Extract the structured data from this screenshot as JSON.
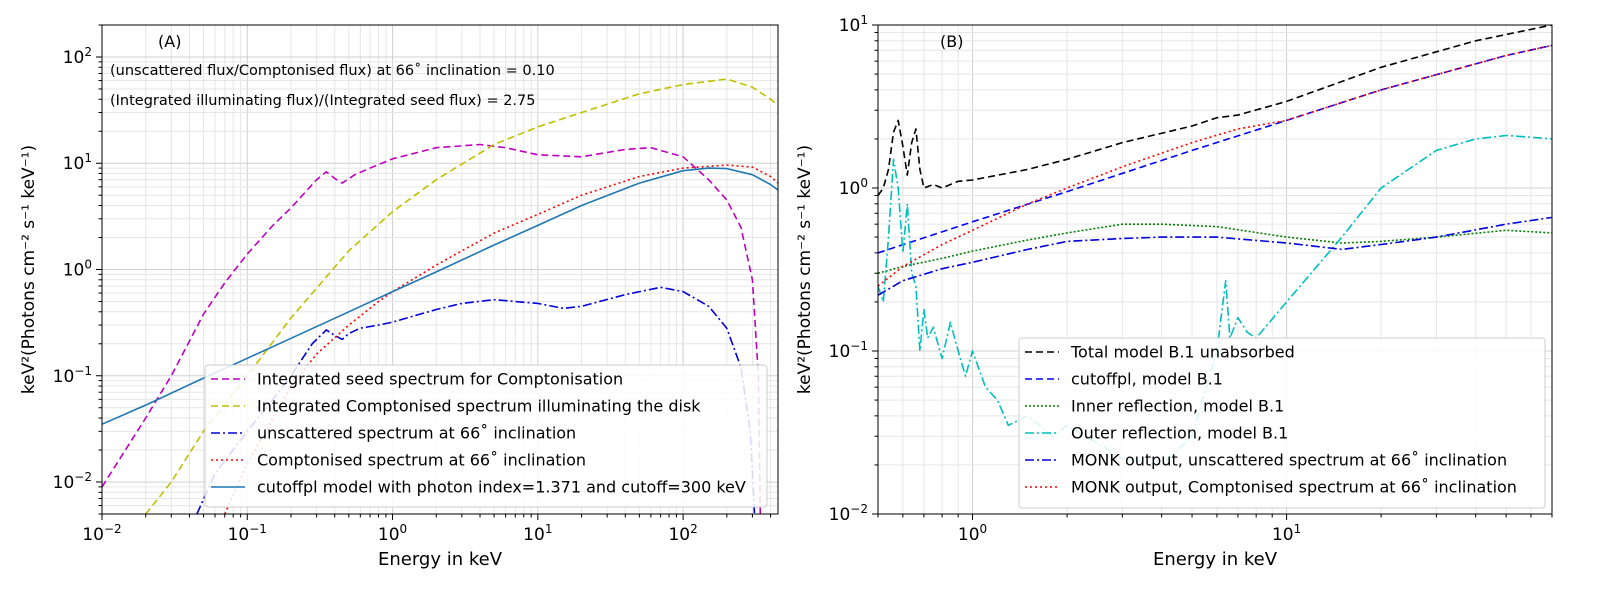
{
  "chart_data": [
    {
      "type": "line",
      "panel_label": "(A)",
      "xlabel": "Energy in keV",
      "ylabel": "keV²(Photons cm⁻² s⁻¹ keV⁻¹)",
      "xscale": "log",
      "yscale": "log",
      "xlim": [
        0.01,
        450
      ],
      "ylim": [
        0.005,
        200
      ],
      "x_ticks": [
        {
          "v": 0.01,
          "b": "10",
          "e": "−2"
        },
        {
          "v": 0.1,
          "b": "10",
          "e": "−1"
        },
        {
          "v": 1,
          "b": "10",
          "e": "0"
        },
        {
          "v": 10,
          "b": "10",
          "e": "1"
        },
        {
          "v": 100,
          "b": "10",
          "e": "2"
        }
      ],
      "y_ticks": [
        {
          "v": 0.01,
          "b": "10",
          "e": "−2"
        },
        {
          "v": 0.1,
          "b": "10",
          "e": "−1"
        },
        {
          "v": 1,
          "b": "10",
          "e": "0"
        },
        {
          "v": 10,
          "b": "10",
          "e": "1"
        },
        {
          "v": 100,
          "b": "10",
          "e": "2"
        }
      ],
      "annotations": [
        "(unscattered flux/Comptonised flux) at 66˚ inclination = 0.10",
        "(Integrated illuminating flux)/(Integrated seed flux) = 2.75"
      ],
      "legend_position": "lower-right",
      "series": [
        {
          "name": "Integrated seed spectrum for Comptonisation",
          "color": "#c000c0",
          "dash": "7,4",
          "points": [
            [
              0.01,
              0.009
            ],
            [
              0.02,
              0.04
            ],
            [
              0.03,
              0.1
            ],
            [
              0.05,
              0.38
            ],
            [
              0.07,
              0.75
            ],
            [
              0.1,
              1.4
            ],
            [
              0.15,
              2.6
            ],
            [
              0.2,
              3.8
            ],
            [
              0.3,
              7
            ],
            [
              0.35,
              8.3
            ],
            [
              0.4,
              7.2
            ],
            [
              0.45,
              6.5
            ],
            [
              0.55,
              7.8
            ],
            [
              0.7,
              9
            ],
            [
              1,
              11
            ],
            [
              2,
              14
            ],
            [
              4,
              15
            ],
            [
              6,
              14
            ],
            [
              10,
              12
            ],
            [
              20,
              11.5
            ],
            [
              40,
              13.5
            ],
            [
              60,
              14
            ],
            [
              100,
              11.5
            ],
            [
              150,
              7
            ],
            [
              200,
              4.5
            ],
            [
              250,
              2.5
            ],
            [
              300,
              0.8
            ],
            [
              330,
              0.1
            ],
            [
              340,
              0.005
            ]
          ]
        },
        {
          "name": "Integrated Comptonised spectrum illuminating the disk",
          "color": "#c0c000",
          "dash": "7,4",
          "points": [
            [
              0.02,
              0.005
            ],
            [
              0.03,
              0.01
            ],
            [
              0.05,
              0.03
            ],
            [
              0.1,
              0.1
            ],
            [
              0.2,
              0.35
            ],
            [
              0.5,
              1.5
            ],
            [
              1,
              3.5
            ],
            [
              2,
              7
            ],
            [
              5,
              15
            ],
            [
              10,
              22
            ],
            [
              20,
              30
            ],
            [
              50,
              45
            ],
            [
              100,
              55
            ],
            [
              200,
              62
            ],
            [
              300,
              52
            ],
            [
              400,
              40
            ],
            [
              450,
              35
            ]
          ]
        },
        {
          "name": "unscattered spectrum at 66˚ inclination",
          "color": "#0000dd",
          "dash": "9,3,2,3",
          "points": [
            [
              0.045,
              0.005
            ],
            [
              0.06,
              0.012
            ],
            [
              0.1,
              0.03
            ],
            [
              0.15,
              0.06
            ],
            [
              0.2,
              0.1
            ],
            [
              0.28,
              0.2
            ],
            [
              0.35,
              0.27
            ],
            [
              0.4,
              0.24
            ],
            [
              0.45,
              0.22
            ],
            [
              0.5,
              0.25
            ],
            [
              0.6,
              0.28
            ],
            [
              0.8,
              0.3
            ],
            [
              1,
              0.32
            ],
            [
              2,
              0.42
            ],
            [
              3,
              0.48
            ],
            [
              5,
              0.52
            ],
            [
              10,
              0.48
            ],
            [
              15,
              0.43
            ],
            [
              20,
              0.45
            ],
            [
              40,
              0.58
            ],
            [
              70,
              0.68
            ],
            [
              100,
              0.62
            ],
            [
              150,
              0.45
            ],
            [
              200,
              0.28
            ],
            [
              250,
              0.12
            ],
            [
              290,
              0.03
            ],
            [
              310,
              0.005
            ]
          ]
        },
        {
          "name": "Comptonised spectrum at 66˚ inclination",
          "color": "#ff0000",
          "dash": "2,3",
          "points": [
            [
              0.07,
              0.005
            ],
            [
              0.1,
              0.015
            ],
            [
              0.15,
              0.04
            ],
            [
              0.2,
              0.08
            ],
            [
              0.3,
              0.16
            ],
            [
              0.5,
              0.3
            ],
            [
              0.8,
              0.5
            ],
            [
              1,
              0.62
            ],
            [
              2,
              1.1
            ],
            [
              3,
              1.5
            ],
            [
              5,
              2.2
            ],
            [
              10,
              3.3
            ],
            [
              20,
              5
            ],
            [
              50,
              7.5
            ],
            [
              100,
              9
            ],
            [
              200,
              9.6
            ],
            [
              300,
              9.2
            ],
            [
              400,
              7.5
            ],
            [
              450,
              6.5
            ]
          ]
        },
        {
          "name": "cutoffpl model with photon index=1.371 and cutoff=300 keV",
          "color": "#1f77b4",
          "dash": "",
          "points": [
            [
              0.01,
              0.035
            ],
            [
              0.02,
              0.053
            ],
            [
              0.05,
              0.095
            ],
            [
              0.1,
              0.146
            ],
            [
              0.2,
              0.225
            ],
            [
              0.5,
              0.4
            ],
            [
              1,
              0.62
            ],
            [
              2,
              0.95
            ],
            [
              5,
              1.7
            ],
            [
              10,
              2.6
            ],
            [
              20,
              4
            ],
            [
              50,
              6.5
            ],
            [
              100,
              8.5
            ],
            [
              150,
              9
            ],
            [
              200,
              8.9
            ],
            [
              300,
              7.8
            ],
            [
              400,
              6.3
            ],
            [
              450,
              5.6
            ]
          ]
        }
      ]
    },
    {
      "type": "line",
      "panel_label": "(B)",
      "xlabel": "Energy in keV",
      "ylabel": "keV²(Photons cm⁻² s⁻¹ keV⁻¹)",
      "xscale": "log",
      "yscale": "log",
      "xlim": [
        0.5,
        70
      ],
      "ylim": [
        0.01,
        10
      ],
      "x_ticks": [
        {
          "v": 1,
          "b": "10",
          "e": "0"
        },
        {
          "v": 10,
          "b": "10",
          "e": "1"
        }
      ],
      "y_ticks": [
        {
          "v": 0.01,
          "b": "10",
          "e": "−2"
        },
        {
          "v": 0.1,
          "b": "10",
          "e": "−1"
        },
        {
          "v": 1,
          "b": "10",
          "e": "0"
        },
        {
          "v": 10,
          "b": "10",
          "e": "1"
        }
      ],
      "legend_position": "lower-right",
      "series": [
        {
          "name": "Total model B.1 unabsorbed",
          "color": "#000000",
          "dash": "7,4",
          "points": [
            [
              0.5,
              0.9
            ],
            [
              0.52,
              1.0
            ],
            [
              0.54,
              1.3
            ],
            [
              0.56,
              2.2
            ],
            [
              0.58,
              2.6
            ],
            [
              0.6,
              1.8
            ],
            [
              0.62,
              1.2
            ],
            [
              0.64,
              1.9
            ],
            [
              0.66,
              2.3
            ],
            [
              0.68,
              1.3
            ],
            [
              0.7,
              1.0
            ],
            [
              0.75,
              1.05
            ],
            [
              0.8,
              1.0
            ],
            [
              0.9,
              1.1
            ],
            [
              1,
              1.12
            ],
            [
              1.5,
              1.3
            ],
            [
              2,
              1.5
            ],
            [
              3,
              1.9
            ],
            [
              5,
              2.4
            ],
            [
              6,
              2.7
            ],
            [
              7,
              2.8
            ],
            [
              10,
              3.4
            ],
            [
              20,
              5.5
            ],
            [
              40,
              8
            ],
            [
              70,
              10
            ]
          ]
        },
        {
          "name": "cutoffpl, model B.1",
          "color": "#0000ff",
          "dash": "7,4",
          "points": [
            [
              0.5,
              0.4
            ],
            [
              1,
              0.62
            ],
            [
              2,
              0.95
            ],
            [
              5,
              1.7
            ],
            [
              10,
              2.6
            ],
            [
              20,
              4
            ],
            [
              50,
              6.5
            ],
            [
              70,
              7.5
            ]
          ]
        },
        {
          "name": "Inner reflection, model B.1",
          "color": "#008000",
          "dash": "2,2",
          "points": [
            [
              0.5,
              0.3
            ],
            [
              0.6,
              0.33
            ],
            [
              0.8,
              0.37
            ],
            [
              1,
              0.41
            ],
            [
              1.5,
              0.48
            ],
            [
              2,
              0.53
            ],
            [
              3,
              0.6
            ],
            [
              4,
              0.6
            ],
            [
              6,
              0.58
            ],
            [
              10,
              0.5
            ],
            [
              15,
              0.46
            ],
            [
              20,
              0.47
            ],
            [
              30,
              0.5
            ],
            [
              50,
              0.55
            ],
            [
              70,
              0.53
            ]
          ]
        },
        {
          "name": "Outer reflection, model B.1",
          "color": "#00bfbf",
          "dash": "9,3,2,3",
          "points": [
            [
              0.5,
              0.25
            ],
            [
              0.52,
              0.2
            ],
            [
              0.54,
              0.5
            ],
            [
              0.56,
              1.5
            ],
            [
              0.58,
              1.0
            ],
            [
              0.6,
              0.4
            ],
            [
              0.62,
              0.8
            ],
            [
              0.64,
              0.3
            ],
            [
              0.66,
              0.25
            ],
            [
              0.68,
              0.1
            ],
            [
              0.7,
              0.18
            ],
            [
              0.72,
              0.12
            ],
            [
              0.75,
              0.14
            ],
            [
              0.8,
              0.09
            ],
            [
              0.85,
              0.15
            ],
            [
              0.9,
              0.1
            ],
            [
              0.95,
              0.07
            ],
            [
              1,
              0.1
            ],
            [
              1.1,
              0.06
            ],
            [
              1.2,
              0.05
            ],
            [
              1.3,
              0.035
            ],
            [
              1.5,
              0.04
            ],
            [
              1.8,
              0.03
            ],
            [
              2,
              0.035
            ],
            [
              3,
              0.022
            ],
            [
              4,
              0.02
            ],
            [
              5,
              0.03
            ],
            [
              6,
              0.1
            ],
            [
              6.4,
              0.27
            ],
            [
              6.6,
              0.12
            ],
            [
              7,
              0.16
            ],
            [
              7.5,
              0.13
            ],
            [
              8,
              0.12
            ],
            [
              10,
              0.2
            ],
            [
              15,
              0.5
            ],
            [
              20,
              1.0
            ],
            [
              30,
              1.7
            ],
            [
              40,
              2.0
            ],
            [
              50,
              2.1
            ],
            [
              60,
              2.05
            ],
            [
              70,
              2.0
            ]
          ]
        },
        {
          "name": "MONK output, unscattered spectrum at 66˚ inclination",
          "color": "#0000dd",
          "dash": "9,3,2,3",
          "points": [
            [
              0.5,
              0.22
            ],
            [
              0.6,
              0.27
            ],
            [
              0.8,
              0.32
            ],
            [
              1,
              0.35
            ],
            [
              1.5,
              0.42
            ],
            [
              2,
              0.47
            ],
            [
              3,
              0.49
            ],
            [
              4,
              0.5
            ],
            [
              6,
              0.5
            ],
            [
              10,
              0.46
            ],
            [
              15,
              0.42
            ],
            [
              20,
              0.45
            ],
            [
              30,
              0.5
            ],
            [
              50,
              0.6
            ],
            [
              70,
              0.66
            ]
          ]
        },
        {
          "name": "MONK output, Comptonised spectrum at 66˚ inclination",
          "color": "#ff0000",
          "dash": "2,3",
          "points": [
            [
              0.5,
              0.25
            ],
            [
              0.6,
              0.33
            ],
            [
              0.8,
              0.45
            ],
            [
              1,
              0.55
            ],
            [
              1.5,
              0.8
            ],
            [
              2,
              1.0
            ],
            [
              3,
              1.35
            ],
            [
              5,
              1.9
            ],
            [
              7,
              2.3
            ],
            [
              10,
              2.6
            ],
            [
              20,
              4
            ],
            [
              50,
              6.5
            ],
            [
              70,
              7.5
            ]
          ]
        }
      ]
    }
  ]
}
